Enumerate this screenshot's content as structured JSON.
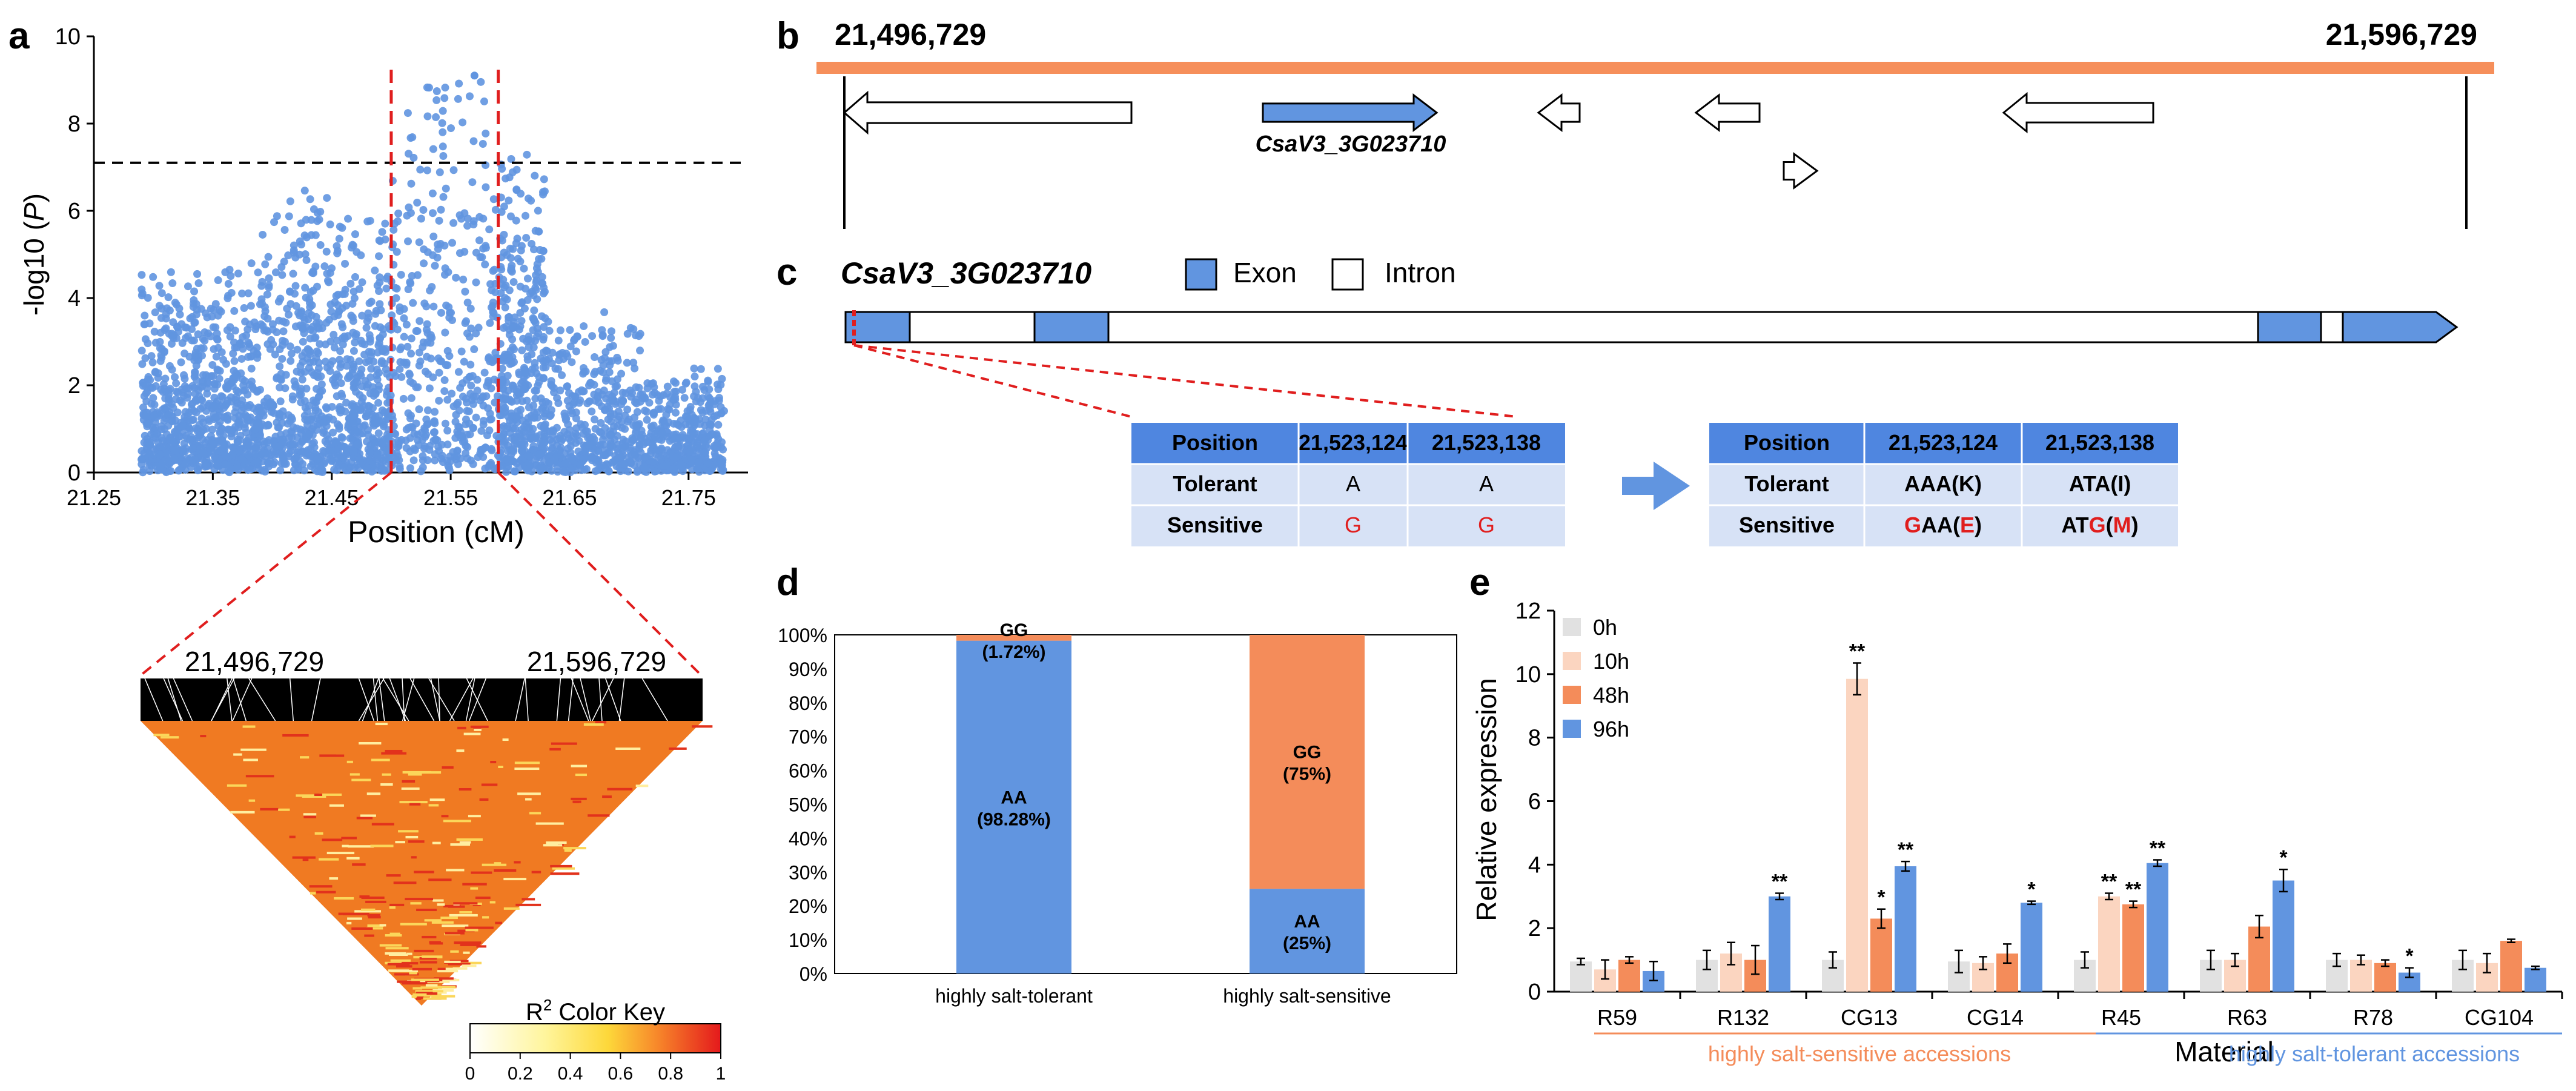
{
  "colors": {
    "blue": "#6195e0",
    "orange": "#f68f5b",
    "peach": "#fbd5c0",
    "grey": "#e1e1e1",
    "red": "#e01e1e",
    "table_head": "#4f86e0",
    "table_row": "#d7e2f6",
    "orange_bar": "#f48c5a"
  },
  "panel_letters": {
    "a": "a",
    "b": "b",
    "c": "c",
    "d": "d",
    "e": "e"
  },
  "panel_a": {
    "ylabel_prefix": "-log10 (",
    "ylabel_italic": "P",
    "ylabel_suffix": ")",
    "xlabel": "Position (cM)",
    "y_ticks": [
      "0",
      "2",
      "4",
      "6",
      "8",
      "10"
    ],
    "x_ticks": [
      "21.25",
      "21.35",
      "21.45",
      "21.55",
      "21.65",
      "21.75"
    ],
    "ld_label_left": "21,496,729",
    "ld_label_right": "21,596,729",
    "color_key_title": "R",
    "color_key_sup": "2",
    "color_key_suffix": " Color Key",
    "color_key_ticks": [
      "0",
      "0.2",
      "0.4",
      "0.6",
      "0.8",
      "1"
    ]
  },
  "panel_b": {
    "left_coord": "21,496,729",
    "right_coord": "21,596,729",
    "gene_label": "CsaV3_3G023710"
  },
  "panel_c": {
    "gene_title": "CsaV3_3G023710",
    "legend_exon": "Exon",
    "legend_intron": "Intron",
    "table1": {
      "header": [
        "Position",
        "21,523,124",
        "21,523,138"
      ],
      "rows": [
        {
          "label": "Tolerant",
          "cells": [
            "A",
            "A"
          ]
        },
        {
          "label": "Sensitive",
          "cells": [
            "G",
            "G"
          ]
        }
      ]
    },
    "table2": {
      "header": [
        "Position",
        "21,523,124",
        "21,523,138"
      ],
      "rows": [
        {
          "label": "Tolerant",
          "cells": [
            "AAA(K)",
            "ATA(I)"
          ]
        },
        {
          "label": "Sensitive",
          "cells": [
            "GAA(E)",
            "ATG(M)"
          ]
        }
      ]
    }
  },
  "chart_data": [
    {
      "panel": "a",
      "type": "scatter",
      "title": "",
      "xlabel": "Position (cM)",
      "ylabel": "-log10 (P)",
      "xlim": [
        21.25,
        21.8
      ],
      "ylim": [
        0,
        10
      ],
      "x_ticks": [
        21.25,
        21.35,
        21.45,
        21.55,
        21.65,
        21.75
      ],
      "y_ticks": [
        0,
        2,
        4,
        6,
        8,
        10
      ],
      "threshold": 7.1,
      "highlight_region": [
        21.5,
        21.59
      ],
      "peak_point": {
        "x": 21.57,
        "y": 9.1
      },
      "density_profile": [
        {
          "x_range": [
            21.29,
            21.34
          ],
          "y_range": [
            0,
            4.6
          ]
        },
        {
          "x_range": [
            21.34,
            21.39
          ],
          "y_range": [
            0,
            4.8
          ]
        },
        {
          "x_range": [
            21.39,
            21.45
          ],
          "y_range": [
            0,
            6.5
          ]
        },
        {
          "x_range": [
            21.45,
            21.5
          ],
          "y_range": [
            0,
            6.0
          ]
        },
        {
          "x_range": [
            21.5,
            21.59
          ],
          "y_range": [
            0,
            9.1
          ]
        },
        {
          "x_range": [
            21.59,
            21.63
          ],
          "y_range": [
            0,
            7.3
          ]
        },
        {
          "x_range": [
            21.63,
            21.71
          ],
          "y_range": [
            0,
            3.7
          ]
        },
        {
          "x_range": [
            21.71,
            21.78
          ],
          "y_range": [
            0,
            2.4
          ]
        }
      ]
    },
    {
      "panel": "d",
      "type": "bar",
      "stacked": true,
      "categories": [
        "highly salt-tolerant",
        "highly salt-sensitive"
      ],
      "series": [
        {
          "name": "AA",
          "values": [
            98.28,
            25
          ],
          "labels": [
            "AA\n(98.28%)",
            "AA\n(25%)"
          ]
        },
        {
          "name": "GG",
          "values": [
            1.72,
            75
          ],
          "labels": [
            "GG\n(1.72%)",
            "GG\n(75%)"
          ]
        }
      ],
      "ylim": [
        0,
        100
      ],
      "y_ticks": [
        "0%",
        "10%",
        "20%",
        "30%",
        "40%",
        "50%",
        "60%",
        "70%",
        "80%",
        "90%",
        "100%"
      ]
    },
    {
      "panel": "e",
      "type": "bar",
      "xlabel": "Material",
      "ylabel": "Relative expression",
      "ylim": [
        0,
        12
      ],
      "y_ticks": [
        0,
        2,
        4,
        6,
        8,
        10,
        12
      ],
      "categories": [
        "R59",
        "R132",
        "CG13",
        "CG14",
        "R45",
        "R63",
        "R78",
        "CG104"
      ],
      "series": [
        {
          "name": "0h",
          "values": [
            0.95,
            1.0,
            1.0,
            0.95,
            1.0,
            1.0,
            1.0,
            1.0
          ],
          "errors": [
            0.1,
            0.3,
            0.25,
            0.35,
            0.25,
            0.3,
            0.2,
            0.3
          ],
          "sig": [
            "",
            "",
            "",
            "",
            "",
            "",
            "",
            ""
          ]
        },
        {
          "name": "10h",
          "values": [
            0.7,
            1.2,
            9.85,
            0.9,
            3.0,
            1.0,
            1.0,
            0.9
          ],
          "errors": [
            0.3,
            0.35,
            0.5,
            0.2,
            0.1,
            0.2,
            0.15,
            0.3
          ],
          "sig": [
            "",
            "",
            "**",
            "",
            "**",
            "",
            "",
            ""
          ]
        },
        {
          "name": "48h",
          "values": [
            1.0,
            1.0,
            2.3,
            1.2,
            2.75,
            2.05,
            0.9,
            1.6
          ],
          "errors": [
            0.1,
            0.45,
            0.3,
            0.3,
            0.1,
            0.35,
            0.1,
            0.05
          ],
          "sig": [
            "",
            "",
            "*",
            "",
            "**",
            "",
            "",
            ""
          ]
        },
        {
          "name": "96h",
          "values": [
            0.65,
            3.0,
            3.95,
            2.8,
            4.05,
            3.5,
            0.6,
            0.75
          ],
          "errors": [
            0.3,
            0.1,
            0.15,
            0.05,
            0.1,
            0.35,
            0.15,
            0.05
          ],
          "sig": [
            "",
            "**",
            "**",
            "*",
            "**",
            "*",
            "*",
            ""
          ]
        }
      ],
      "group_labels": [
        "highly salt-sensitive accessions",
        "highly salt-tolerant accessions"
      ]
    }
  ]
}
